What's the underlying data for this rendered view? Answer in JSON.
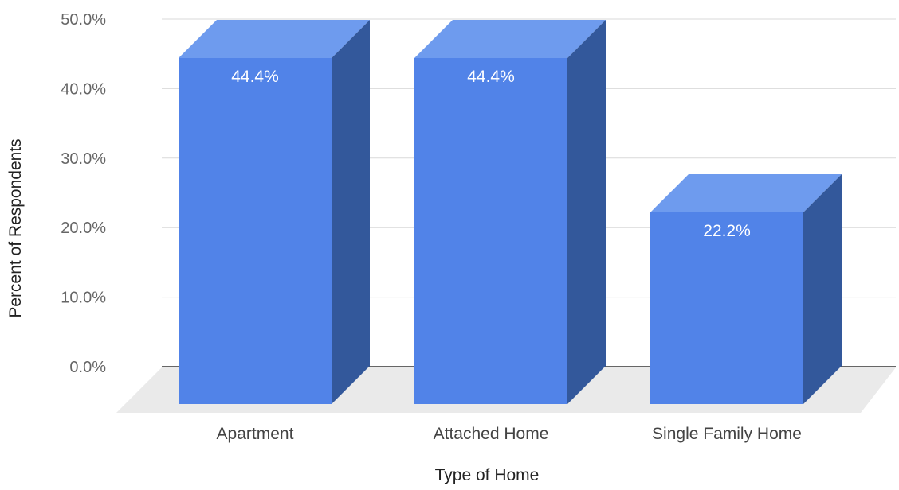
{
  "chart_data": {
    "type": "bar",
    "title": "",
    "xlabel": "Type of Home",
    "ylabel": "Percent of Respondents",
    "categories": [
      "Apartment",
      "Attached Home",
      "Single Family Home"
    ],
    "values": [
      44.4,
      44.4,
      22.2
    ],
    "data_labels": [
      "44.4%",
      "44.4%",
      "22.2%"
    ],
    "ylim": [
      0,
      50
    ],
    "yticks": [
      0,
      10,
      20,
      30,
      40,
      50
    ],
    "ytick_labels": [
      "0.0%",
      "10.0%",
      "20.0%",
      "30.0%",
      "40.0%",
      "50.0%"
    ],
    "style": "3d",
    "grid": true,
    "colors": {
      "bar_front": "#5183e8",
      "bar_top": "#6e9bee",
      "bar_side": "#33589b",
      "floor": "#eaeaea",
      "gridline": "#d9d9d9",
      "baseline": "#333333"
    }
  }
}
